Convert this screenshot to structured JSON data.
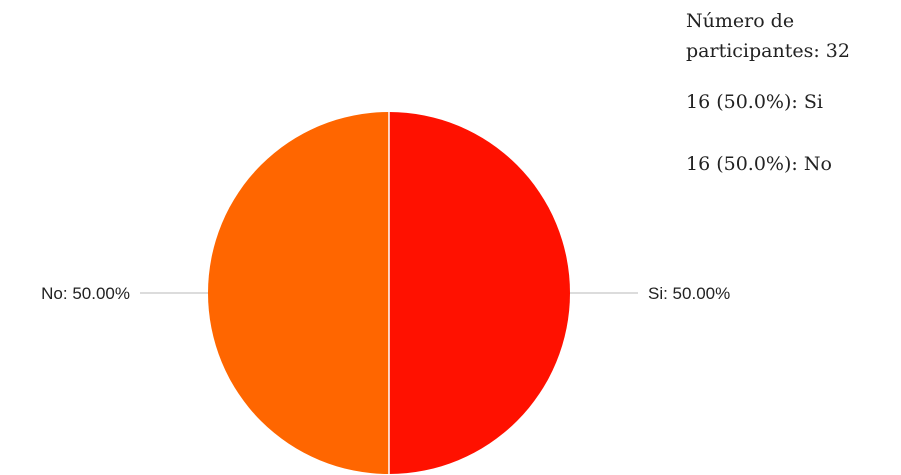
{
  "chart_data": {
    "type": "pie",
    "title": "",
    "slices": [
      {
        "name": "Si",
        "count": 16,
        "percent": 50.0,
        "color": "#ff1100",
        "label": "Si: 50.00%"
      },
      {
        "name": "No",
        "count": 16,
        "percent": 50.0,
        "color": "#ff6600",
        "label": "No: 50.00%"
      }
    ],
    "total_label": "Número de participantes: 32",
    "total": 32,
    "summary": [
      "16 (50.0%): Si",
      "16 (50.0%): No"
    ]
  }
}
